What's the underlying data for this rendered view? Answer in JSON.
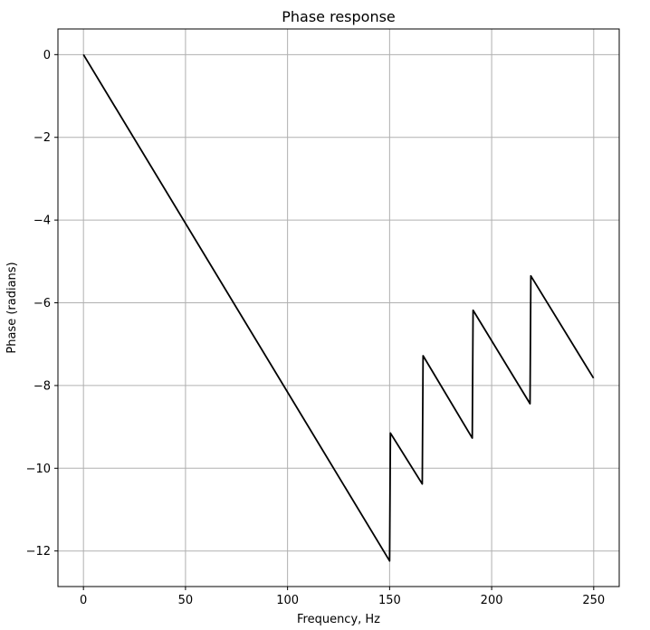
{
  "chart_data": {
    "type": "line",
    "title": "Phase response",
    "xlabel": "Frequency, Hz",
    "ylabel": "Phase (radians)",
    "xlim": [
      -12.5,
      262.5
    ],
    "ylim": [
      -12.86,
      0.62
    ],
    "xticks": [
      0,
      50,
      100,
      150,
      200,
      250
    ],
    "xtick_labels": [
      "0",
      "50",
      "100",
      "150",
      "200",
      "250"
    ],
    "yticks": [
      0,
      -2,
      -4,
      -6,
      -8,
      -10,
      -12
    ],
    "ytick_labels": [
      "0",
      "−2",
      "−4",
      "−6",
      "−8",
      "−10",
      "−12"
    ],
    "grid": true,
    "legend": "none",
    "colors": {
      "line": "#000000",
      "grid": "#b0b0b0",
      "axes": "#000000"
    },
    "series": [
      {
        "x": [
          0,
          150,
          150.4,
          166,
          166.4,
          190.5,
          190.9,
          218.8,
          219.2,
          249.9
        ],
        "y": [
          0,
          -12.24,
          -9.15,
          -10.38,
          -7.28,
          -9.27,
          -6.18,
          -8.44,
          -5.35,
          -7.82
        ]
      }
    ]
  }
}
